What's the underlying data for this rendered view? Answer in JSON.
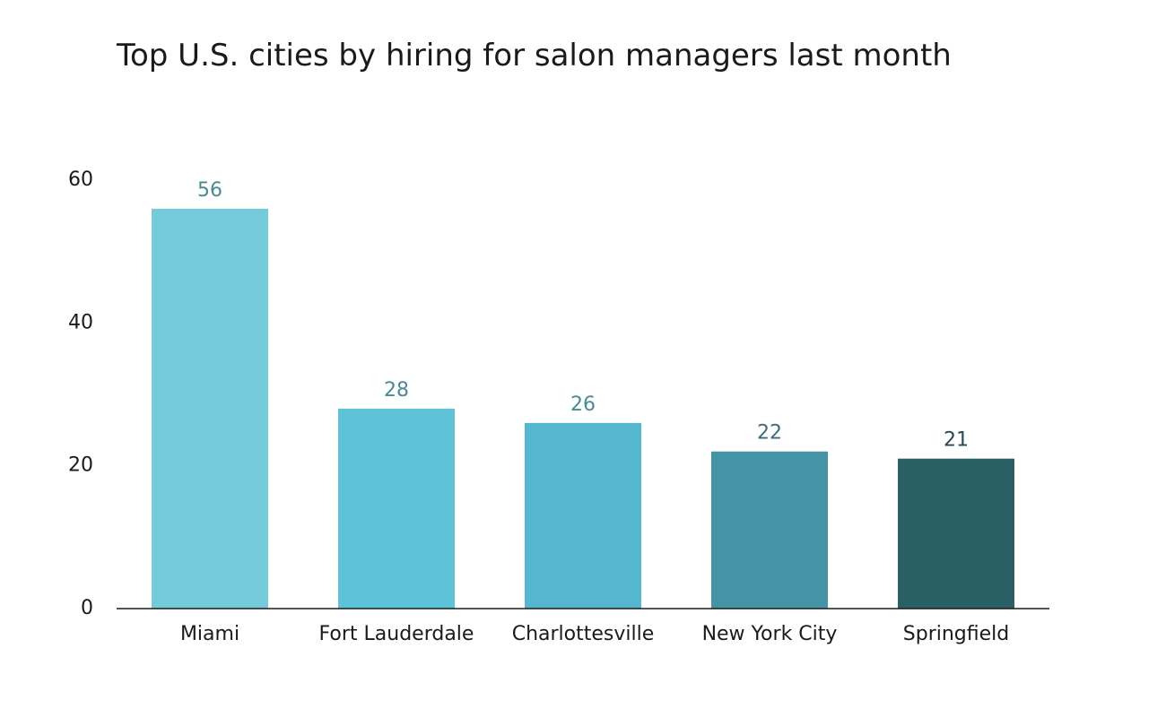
{
  "chart_data": {
    "type": "bar",
    "title": "Top U.S. cities by hiring for salon managers last month",
    "xlabel": "",
    "ylabel": "",
    "categories": [
      "Miami",
      "Fort Lauderdale",
      "Charlottesville",
      "New York City",
      "Springfield"
    ],
    "values": [
      56,
      28,
      26,
      22,
      21
    ],
    "value_labels": [
      "56",
      "28",
      "26",
      "22",
      "21"
    ],
    "ylim": [
      0,
      60
    ],
    "yticks": [
      0,
      20,
      40,
      60
    ],
    "ytick_labels": [
      "0",
      "20",
      "40",
      "60"
    ],
    "grid": false,
    "legend": "none",
    "bar_colors": [
      "#76cbdb",
      "#5fc3d7",
      "#55b7cf",
      "#4494a6",
      "#2a5f66"
    ],
    "value_label_colors": [
      "#4a8a96",
      "#4a8a96",
      "#4a8a96",
      "#3a6d78",
      "#254a52"
    ]
  }
}
